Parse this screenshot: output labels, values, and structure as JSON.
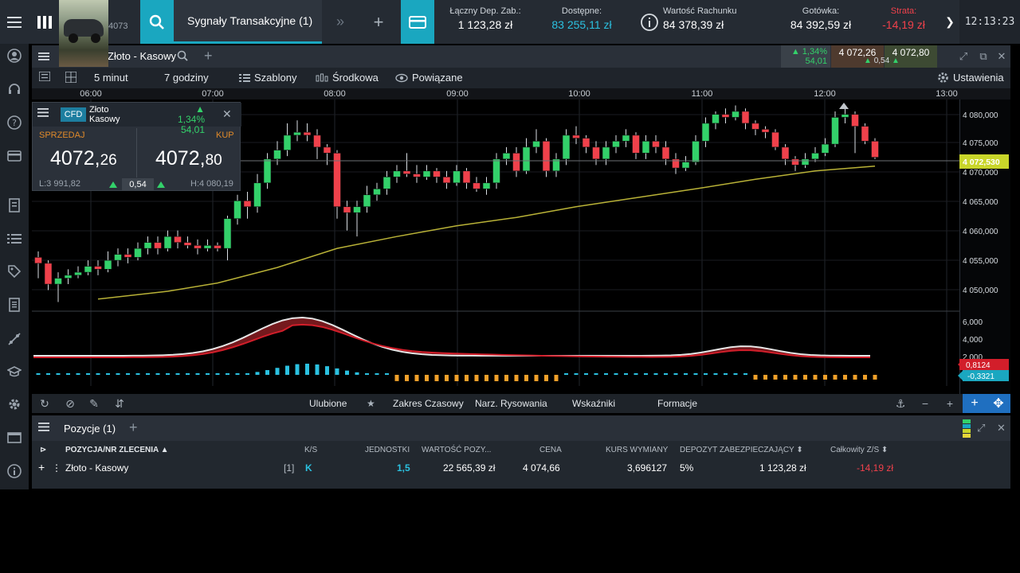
{
  "topbar": {
    "instrument_number": "4073",
    "signals_tab": "Sygnały Transakcyjne (1)",
    "stats": [
      {
        "label": "Łączny Dep. Zab.:",
        "value": "1 123,28 zł"
      },
      {
        "label": "Dostępne:",
        "value": "83 255,11 zł"
      },
      {
        "label": "Wartość Rachunku",
        "value": "84 378,39 zł"
      },
      {
        "label": "Gotówka:",
        "value": "84 392,59 zł"
      },
      {
        "label": "Strata:",
        "value": "-14,19 zł"
      }
    ],
    "clock": "12:13:23"
  },
  "chart": {
    "title": "Złoto - Kasowy",
    "header": {
      "change_pct": "1,34%",
      "change_abs": "54,01",
      "sell": "4 072,26",
      "buy": "4 072,80",
      "spread": "0,54"
    },
    "toolbar": {
      "interval": "5 minut",
      "range": "7 godziny",
      "templates": "Szablony",
      "midpoint": "Środkowa",
      "linked": "Powiązane",
      "settings": "Ustawienia"
    },
    "bottom": {
      "favorites": "Ulubione",
      "time_range": "Zakres Czasowy",
      "drawing_tools": "Narz. Rysowania",
      "indicators": "Wskaźniki",
      "patterns": "Formacje"
    }
  },
  "ticket": {
    "badge": "CFD",
    "name": "Złoto Kasowy",
    "change_pct": "1,34%",
    "change_abs": "54,01",
    "sell_label": "SPRZEDAJ",
    "buy_label": "KUP",
    "sell_main": "4072,",
    "sell_frac": "26",
    "buy_main": "4072,",
    "buy_frac": "80",
    "low": "L:3 991,82",
    "high": "H:4 080,19",
    "spread": "0,54"
  },
  "chart_data": {
    "type": "candlestick",
    "x_labels": [
      "06:00",
      "07:00",
      "08:00",
      "09:00",
      "10:00",
      "11:00",
      "12:00",
      "13:00"
    ],
    "y_labels": [
      "4 080,000",
      "4 075,000",
      "4 070,000",
      "4 065,000",
      "4 060,000",
      "4 055,000",
      "4 050,000"
    ],
    "ylim": [
      4047,
      4082
    ],
    "current_price_label": "4 072,530",
    "candles": [
      [
        4055.5,
        4054.5,
        4056.5,
        4052
      ],
      [
        4054.5,
        4051,
        4055,
        4050
      ],
      [
        4051,
        4052,
        4053,
        4048
      ],
      [
        4052,
        4052.5,
        4053.5,
        4051
      ],
      [
        4052.5,
        4053,
        4054,
        4052
      ],
      [
        4053,
        4054,
        4055,
        4052.5
      ],
      [
        4054,
        4053.5,
        4055,
        4052.5
      ],
      [
        4053.5,
        4055,
        4056.5,
        4053
      ],
      [
        4055,
        4056,
        4057,
        4054
      ],
      [
        4056,
        4055.5,
        4057,
        4054.5
      ],
      [
        4055.5,
        4057,
        4058,
        4055
      ],
      [
        4057,
        4058,
        4059,
        4056
      ],
      [
        4058,
        4057,
        4059,
        4056
      ],
      [
        4057,
        4059,
        4060,
        4056.5
      ],
      [
        4059,
        4058,
        4060,
        4057
      ],
      [
        4058,
        4057.5,
        4059,
        4057
      ],
      [
        4057.5,
        4057,
        4058.5,
        4056
      ],
      [
        4057,
        4057.5,
        4058.5,
        4056.5
      ],
      [
        4057.5,
        4057,
        4058,
        4056.5
      ],
      [
        4057,
        4062,
        4062.5,
        4055
      ],
      [
        4062,
        4065,
        4066,
        4061
      ],
      [
        4065,
        4064,
        4066.5,
        4062
      ],
      [
        4064,
        4068,
        4069.5,
        4063
      ],
      [
        4068,
        4072,
        4073,
        4067
      ],
      [
        4072,
        4073.5,
        4075,
        4071
      ],
      [
        4073.5,
        4076,
        4078,
        4072.5
      ],
      [
        4076,
        4076.5,
        4078.5,
        4075
      ],
      [
        4076.5,
        4076,
        4078,
        4075
      ],
      [
        4076,
        4074,
        4077,
        4072
      ],
      [
        4074,
        4073,
        4074.5,
        4071
      ],
      [
        4073,
        4064,
        4073.5,
        4062
      ],
      [
        4064,
        4063,
        4065,
        4060
      ],
      [
        4063,
        4064,
        4065,
        4059
      ],
      [
        4064,
        4066,
        4067.5,
        4063
      ],
      [
        4066,
        4067,
        4068,
        4065
      ],
      [
        4067,
        4069,
        4070,
        4066
      ],
      [
        4069,
        4070,
        4071,
        4068
      ],
      [
        4070,
        4069.5,
        4073,
        4069
      ],
      [
        4069.5,
        4069,
        4071,
        4068
      ],
      [
        4069,
        4070,
        4071,
        4068.5
      ],
      [
        4070,
        4069,
        4070.5,
        4068
      ],
      [
        4069,
        4068,
        4070,
        4067
      ],
      [
        4068,
        4070,
        4071,
        4067.5
      ],
      [
        4070,
        4068,
        4070.5,
        4067
      ],
      [
        4068,
        4067,
        4069,
        4066.5
      ],
      [
        4067,
        4068,
        4069,
        4066
      ],
      [
        4068,
        4072,
        4073,
        4067
      ],
      [
        4072,
        4073,
        4074,
        4071
      ],
      [
        4073,
        4070,
        4074,
        4069
      ],
      [
        4070,
        4074,
        4075.5,
        4069.5
      ],
      [
        4074,
        4075,
        4077,
        4073
      ],
      [
        4075,
        4070,
        4075.5,
        4069
      ],
      [
        4070,
        4072,
        4073,
        4069
      ],
      [
        4072,
        4076,
        4077,
        4071
      ],
      [
        4076,
        4075.5,
        4077.5,
        4074.5
      ],
      [
        4075.5,
        4074,
        4076,
        4073
      ],
      [
        4074,
        4072,
        4075,
        4071
      ],
      [
        4072,
        4074,
        4075,
        4071
      ],
      [
        4074,
        4075,
        4076,
        4073
      ],
      [
        4075,
        4076,
        4077,
        4074
      ],
      [
        4076,
        4073,
        4076.5,
        4072
      ],
      [
        4073,
        4075,
        4076,
        4072
      ],
      [
        4075,
        4074,
        4076,
        4073
      ],
      [
        4074,
        4072,
        4075,
        4071
      ],
      [
        4072,
        4070.5,
        4073,
        4069.5
      ],
      [
        4070.5,
        4071.5,
        4072.5,
        4070
      ],
      [
        4071.5,
        4075,
        4076,
        4071
      ],
      [
        4075,
        4078,
        4079,
        4074
      ],
      [
        4078,
        4079.5,
        4080,
        4077
      ],
      [
        4079.5,
        4079,
        4080.5,
        4078
      ],
      [
        4079,
        4080,
        4081,
        4078.5
      ],
      [
        4080,
        4078,
        4080.5,
        4077
      ],
      [
        4078,
        4077,
        4078.5,
        4076
      ],
      [
        4077,
        4076.5,
        4077.5,
        4075.5
      ],
      [
        4076.5,
        4074,
        4077,
        4073.5
      ],
      [
        4074,
        4072,
        4074.5,
        4071
      ],
      [
        4072,
        4071,
        4072.5,
        4070
      ],
      [
        4071,
        4072,
        4073,
        4070.5
      ],
      [
        4072,
        4073,
        4074,
        4071.5
      ],
      [
        4073,
        4074.5,
        4075.5,
        4072.5
      ],
      [
        4074.5,
        4079,
        4080,
        4074
      ],
      [
        4079,
        4079.5,
        4080.5,
        4078
      ],
      [
        4079.5,
        4077.5,
        4080,
        4073
      ],
      [
        4077.5,
        4075,
        4078,
        4074.5
      ],
      [
        4075,
        4072.3,
        4075.5,
        4072
      ]
    ],
    "ma": [
      [
        6,
        4048.5
      ],
      [
        13,
        4049.8
      ],
      [
        18,
        4051.2
      ],
      [
        24,
        4053.8
      ],
      [
        30,
        4057.0
      ],
      [
        36,
        4059.0
      ],
      [
        42,
        4060.8
      ],
      [
        48,
        4062.2
      ],
      [
        54,
        4064.0
      ],
      [
        60,
        4065.5
      ],
      [
        66,
        4067.0
      ],
      [
        72,
        4068.6
      ],
      [
        78,
        4070.0
      ],
      [
        84,
        4070.8
      ]
    ],
    "macd": {
      "y_labels": [
        "6,000",
        "4,000",
        "2,000"
      ],
      "value_label": "0,8124",
      "signal_label": "-0,3321"
    }
  },
  "positions": {
    "title": "Pozycje (1)",
    "columns": [
      "POZYCJA/NR ZLECENIA",
      "K/S",
      "JEDNOSTKI",
      "WARTOŚĆ POZY...",
      "CENA",
      "KURS WYMIANY",
      "DEPOZYT ZABEZPIECZAJĄCY",
      "Całkowity Z/S"
    ],
    "rows": [
      {
        "name": "Złoto - Kasowy",
        "count": "[1]",
        "side": "K",
        "units": "1,5",
        "value": "22 565,39 zł",
        "price": "4 074,66",
        "rate": "3,696127",
        "margin_pct": "5%",
        "margin": "1 123,28 zł",
        "pnl": "-14,19 zł"
      }
    ]
  },
  "colors": {
    "accent": "#1aa7c0",
    "up": "#33d16a",
    "down": "#f0414b",
    "ma": "#b9b237"
  }
}
